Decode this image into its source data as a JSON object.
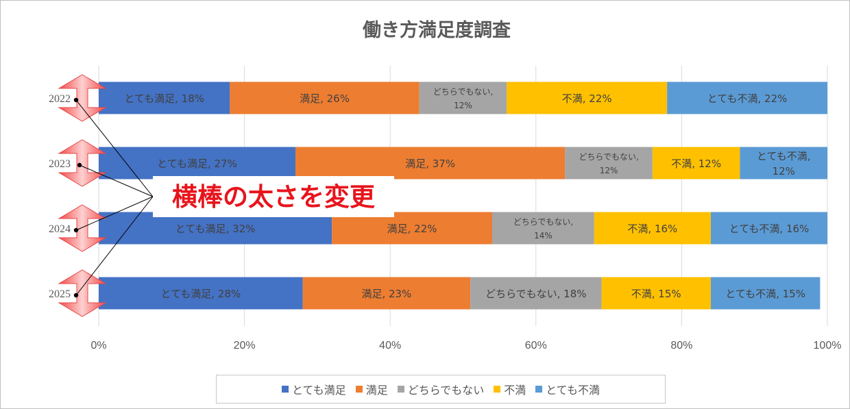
{
  "chart_data": {
    "type": "bar",
    "orientation": "horizontal-stacked-100",
    "title": "働き方満足度調査",
    "categories": [
      "2022",
      "2023",
      "2024",
      "2025"
    ],
    "series": [
      {
        "name": "とても満足",
        "values": [
          18,
          27,
          32,
          28
        ],
        "color": "#4472c4"
      },
      {
        "name": "満足",
        "values": [
          26,
          37,
          22,
          23
        ],
        "color": "#ed7d31"
      },
      {
        "name": "どちらでもない",
        "values": [
          12,
          12,
          14,
          18
        ],
        "color": "#a5a5a5"
      },
      {
        "name": "不満",
        "values": [
          22,
          12,
          16,
          15
        ],
        "color": "#ffc000"
      },
      {
        "name": "とても不満",
        "values": [
          22,
          12,
          16,
          15
        ],
        "color": "#5b9bd5"
      }
    ],
    "data_labels": [
      [
        "とても満足, 18%",
        "満足, 26%",
        "どちらでもない, 12%",
        "不満, 22%",
        "とても不満, 22%"
      ],
      [
        "とても満足, 27%",
        "満足, 37%",
        "どちらでもない, 12%",
        "不満, 12%",
        "とても不満, 12%"
      ],
      [
        "とても満足, 32%",
        "満足, 22%",
        "どちらでもない, 14%",
        "不満, 16%",
        "とても不満, 16%"
      ],
      [
        "とても満足, 28%",
        "満足, 23%",
        "どちらでもない, 18%",
        "不満, 15%",
        "とても不満, 15%"
      ]
    ],
    "x_ticks": [
      "0%",
      "20%",
      "40%",
      "60%",
      "80%",
      "100%"
    ],
    "xlim": [
      0,
      100
    ],
    "grid": true,
    "legend_position": "bottom",
    "annotation": "横棒の太さを変更"
  }
}
